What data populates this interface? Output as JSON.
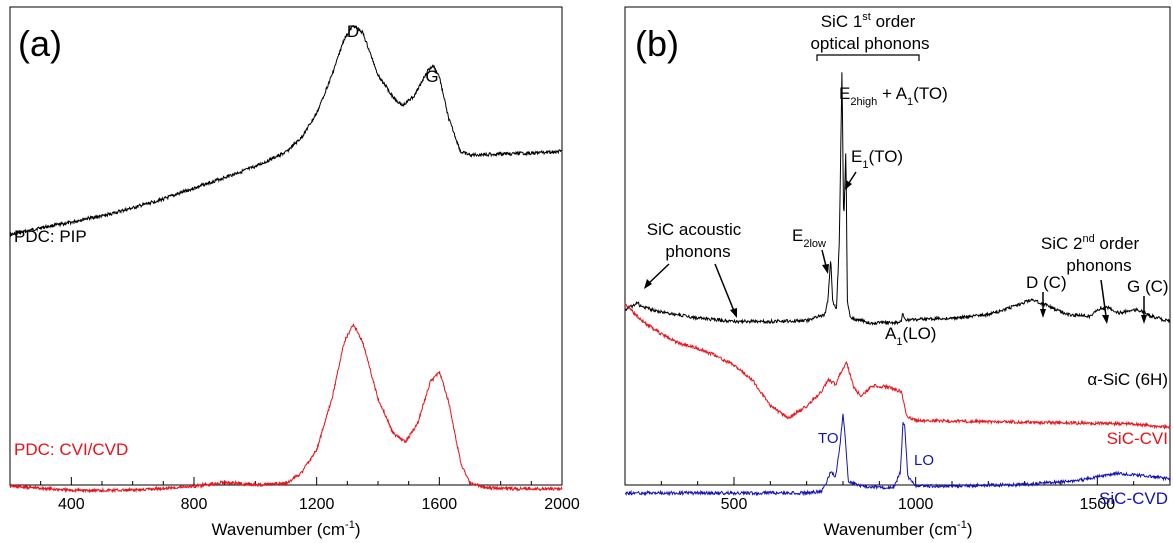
{
  "colors": {
    "black": "#000000",
    "red": "#e8121a",
    "blue": "#1313b8"
  },
  "chart_data": [
    {
      "panel": "(a)",
      "type": "line",
      "xlabel": "Wavenumber (cm",
      "xlabel_sup": "-1",
      "xlabel_end": ")",
      "ylabel": "",
      "xlim": [
        200,
        2000
      ],
      "xticks": [
        "400",
        "800",
        "1200",
        "1600",
        "2000"
      ],
      "yaxis": "intensity (arbitrary units, offset traces, no tick labels)",
      "peaks": [
        {
          "label": "D",
          "x": 1320
        },
        {
          "label": "G",
          "x": 1580
        }
      ],
      "series": [
        {
          "name": "PDC: PIP",
          "color": "#000000",
          "points": [
            [
              200,
              30
            ],
            [
              300,
              38
            ],
            [
              400,
              44
            ],
            [
              445,
              48
            ],
            [
              500,
              51
            ],
            [
              600,
              60
            ],
            [
              700,
              70
            ],
            [
              800,
              82
            ],
            [
              900,
              94
            ],
            [
              1000,
              106
            ],
            [
              1100,
              122
            ],
            [
              1150,
              138
            ],
            [
              1200,
              165
            ],
            [
              1250,
              208
            ],
            [
              1290,
              248
            ],
            [
              1320,
              263
            ],
            [
              1350,
              255
            ],
            [
              1400,
              208
            ],
            [
              1450,
              183
            ],
            [
              1480,
              174
            ],
            [
              1520,
              185
            ],
            [
              1560,
              212
            ],
            [
              1580,
              218
            ],
            [
              1600,
              206
            ],
            [
              1630,
              160
            ],
            [
              1670,
              122
            ],
            [
              1700,
              119
            ],
            [
              1800,
              120
            ],
            [
              1900,
              121
            ],
            [
              2000,
              123
            ]
          ]
        },
        {
          "name": "PDC: CVI/CVD",
          "color": "#e8121a",
          "points": [
            [
              200,
              5
            ],
            [
              400,
              2
            ],
            [
              600,
              2
            ],
            [
              800,
              5
            ],
            [
              900,
              8
            ],
            [
              1000,
              6
            ],
            [
              1100,
              7
            ],
            [
              1150,
              15
            ],
            [
              1200,
              32
            ],
            [
              1250,
              70
            ],
            [
              1290,
              112
            ],
            [
              1320,
              125
            ],
            [
              1350,
              112
            ],
            [
              1400,
              70
            ],
            [
              1450,
              44
            ],
            [
              1490,
              38
            ],
            [
              1530,
              52
            ],
            [
              1570,
              82
            ],
            [
              1600,
              90
            ],
            [
              1630,
              68
            ],
            [
              1670,
              22
            ],
            [
              1700,
              8
            ],
            [
              1750,
              4
            ],
            [
              1850,
              3
            ],
            [
              2000,
              3
            ]
          ]
        }
      ]
    },
    {
      "panel": "(b)",
      "type": "line",
      "xlabel": "Wavenumber (cm",
      "xlabel_sup": "-1",
      "xlabel_end": ")",
      "ylabel": "",
      "xlim": [
        200,
        1700
      ],
      "xticks": [
        "500",
        "1000",
        "1500"
      ],
      "yaxis": "intensity (arbitrary units, offset traces, no tick labels)",
      "annotations": {
        "header_line1_a": "SiC 1",
        "header_line1_sup": "st",
        "header_line1_b": " order",
        "header_line2": "optical phonons",
        "e2high_main": "E",
        "e2high_sub": "2high",
        "e2high_plus": " + A",
        "e2high_sub2": "1",
        "e2high_end": "(TO)",
        "e1_main": "E",
        "e1_sub": "1",
        "e1_end": "(TO)",
        "acoustic_line1": "SiC acoustic",
        "acoustic_line2": "phonons",
        "e2low_main": "E",
        "e2low_sub": "2low",
        "a1lo_main": "A",
        "a1lo_sub": "1",
        "a1lo_end": "(LO)",
        "second_line1_a": "SiC 2",
        "second_line1_sup": "nd",
        "second_line1_b": " order",
        "second_line2": "phonons",
        "dc": "D (C)",
        "gc": "G (C)",
        "alpha_sic": "α-SiC (6H)",
        "to": "TO",
        "lo": "LO",
        "sic_cvi": "SiC-CVI",
        "sic_cvd": "SiC-CVD"
      },
      "series": [
        {
          "name": "α-SiC (6H)",
          "color": "#000000",
          "points": [
            [
              200,
              50
            ],
            [
              230,
              56
            ],
            [
              235,
              60
            ],
            [
              240,
              54
            ],
            [
              300,
              47
            ],
            [
              400,
              40
            ],
            [
              500,
              36
            ],
            [
              600,
              36
            ],
            [
              700,
              37
            ],
            [
              750,
              44
            ],
            [
              758,
              60
            ],
            [
              766,
              110
            ],
            [
              772,
              58
            ],
            [
              782,
              50
            ],
            [
              790,
              130
            ],
            [
              797,
              330
            ],
            [
              802,
              150
            ],
            [
              808,
              240
            ],
            [
              812,
              60
            ],
            [
              820,
              40
            ],
            [
              880,
              34
            ],
            [
              960,
              35
            ],
            [
              965,
              47
            ],
            [
              970,
              38
            ],
            [
              1000,
              38
            ],
            [
              1100,
              40
            ],
            [
              1200,
              44
            ],
            [
              1280,
              55
            ],
            [
              1320,
              62
            ],
            [
              1360,
              55
            ],
            [
              1420,
              44
            ],
            [
              1480,
              42
            ],
            [
              1510,
              52
            ],
            [
              1530,
              52
            ],
            [
              1560,
              46
            ],
            [
              1610,
              50
            ],
            [
              1650,
              42
            ],
            [
              1700,
              36
            ]
          ]
        },
        {
          "name": "SiC-CVI",
          "color": "#e8121a",
          "points": [
            [
              200,
              95
            ],
            [
              250,
              80
            ],
            [
              300,
              70
            ],
            [
              350,
              62
            ],
            [
              400,
              58
            ],
            [
              450,
              52
            ],
            [
              500,
              44
            ],
            [
              550,
              32
            ],
            [
              600,
              10
            ],
            [
              650,
              0
            ],
            [
              700,
              10
            ],
            [
              740,
              22
            ],
            [
              760,
              32
            ],
            [
              780,
              28
            ],
            [
              800,
              42
            ],
            [
              810,
              46
            ],
            [
              830,
              25
            ],
            [
              850,
              18
            ],
            [
              880,
              27
            ],
            [
              920,
              26
            ],
            [
              960,
              22
            ],
            [
              975,
              2
            ],
            [
              1000,
              -2
            ],
            [
              1200,
              -3
            ],
            [
              1400,
              -4
            ],
            [
              1600,
              -5
            ],
            [
              1700,
              -8
            ]
          ]
        },
        {
          "name": "SiC-CVD",
          "color": "#1313b8",
          "points": [
            [
              200,
              0
            ],
            [
              400,
              0
            ],
            [
              600,
              0
            ],
            [
              700,
              0
            ],
            [
              740,
              1
            ],
            [
              755,
              8
            ],
            [
              765,
              15
            ],
            [
              780,
              12
            ],
            [
              792,
              35
            ],
            [
              800,
              57
            ],
            [
              805,
              43
            ],
            [
              815,
              8
            ],
            [
              850,
              5
            ],
            [
              900,
              4
            ],
            [
              940,
              4
            ],
            [
              958,
              15
            ],
            [
              965,
              50
            ],
            [
              970,
              48
            ],
            [
              978,
              12
            ],
            [
              1000,
              5
            ],
            [
              1100,
              5
            ],
            [
              1300,
              6
            ],
            [
              1450,
              9
            ],
            [
              1550,
              14
            ],
            [
              1600,
              13
            ],
            [
              1700,
              10
            ]
          ]
        }
      ]
    }
  ]
}
